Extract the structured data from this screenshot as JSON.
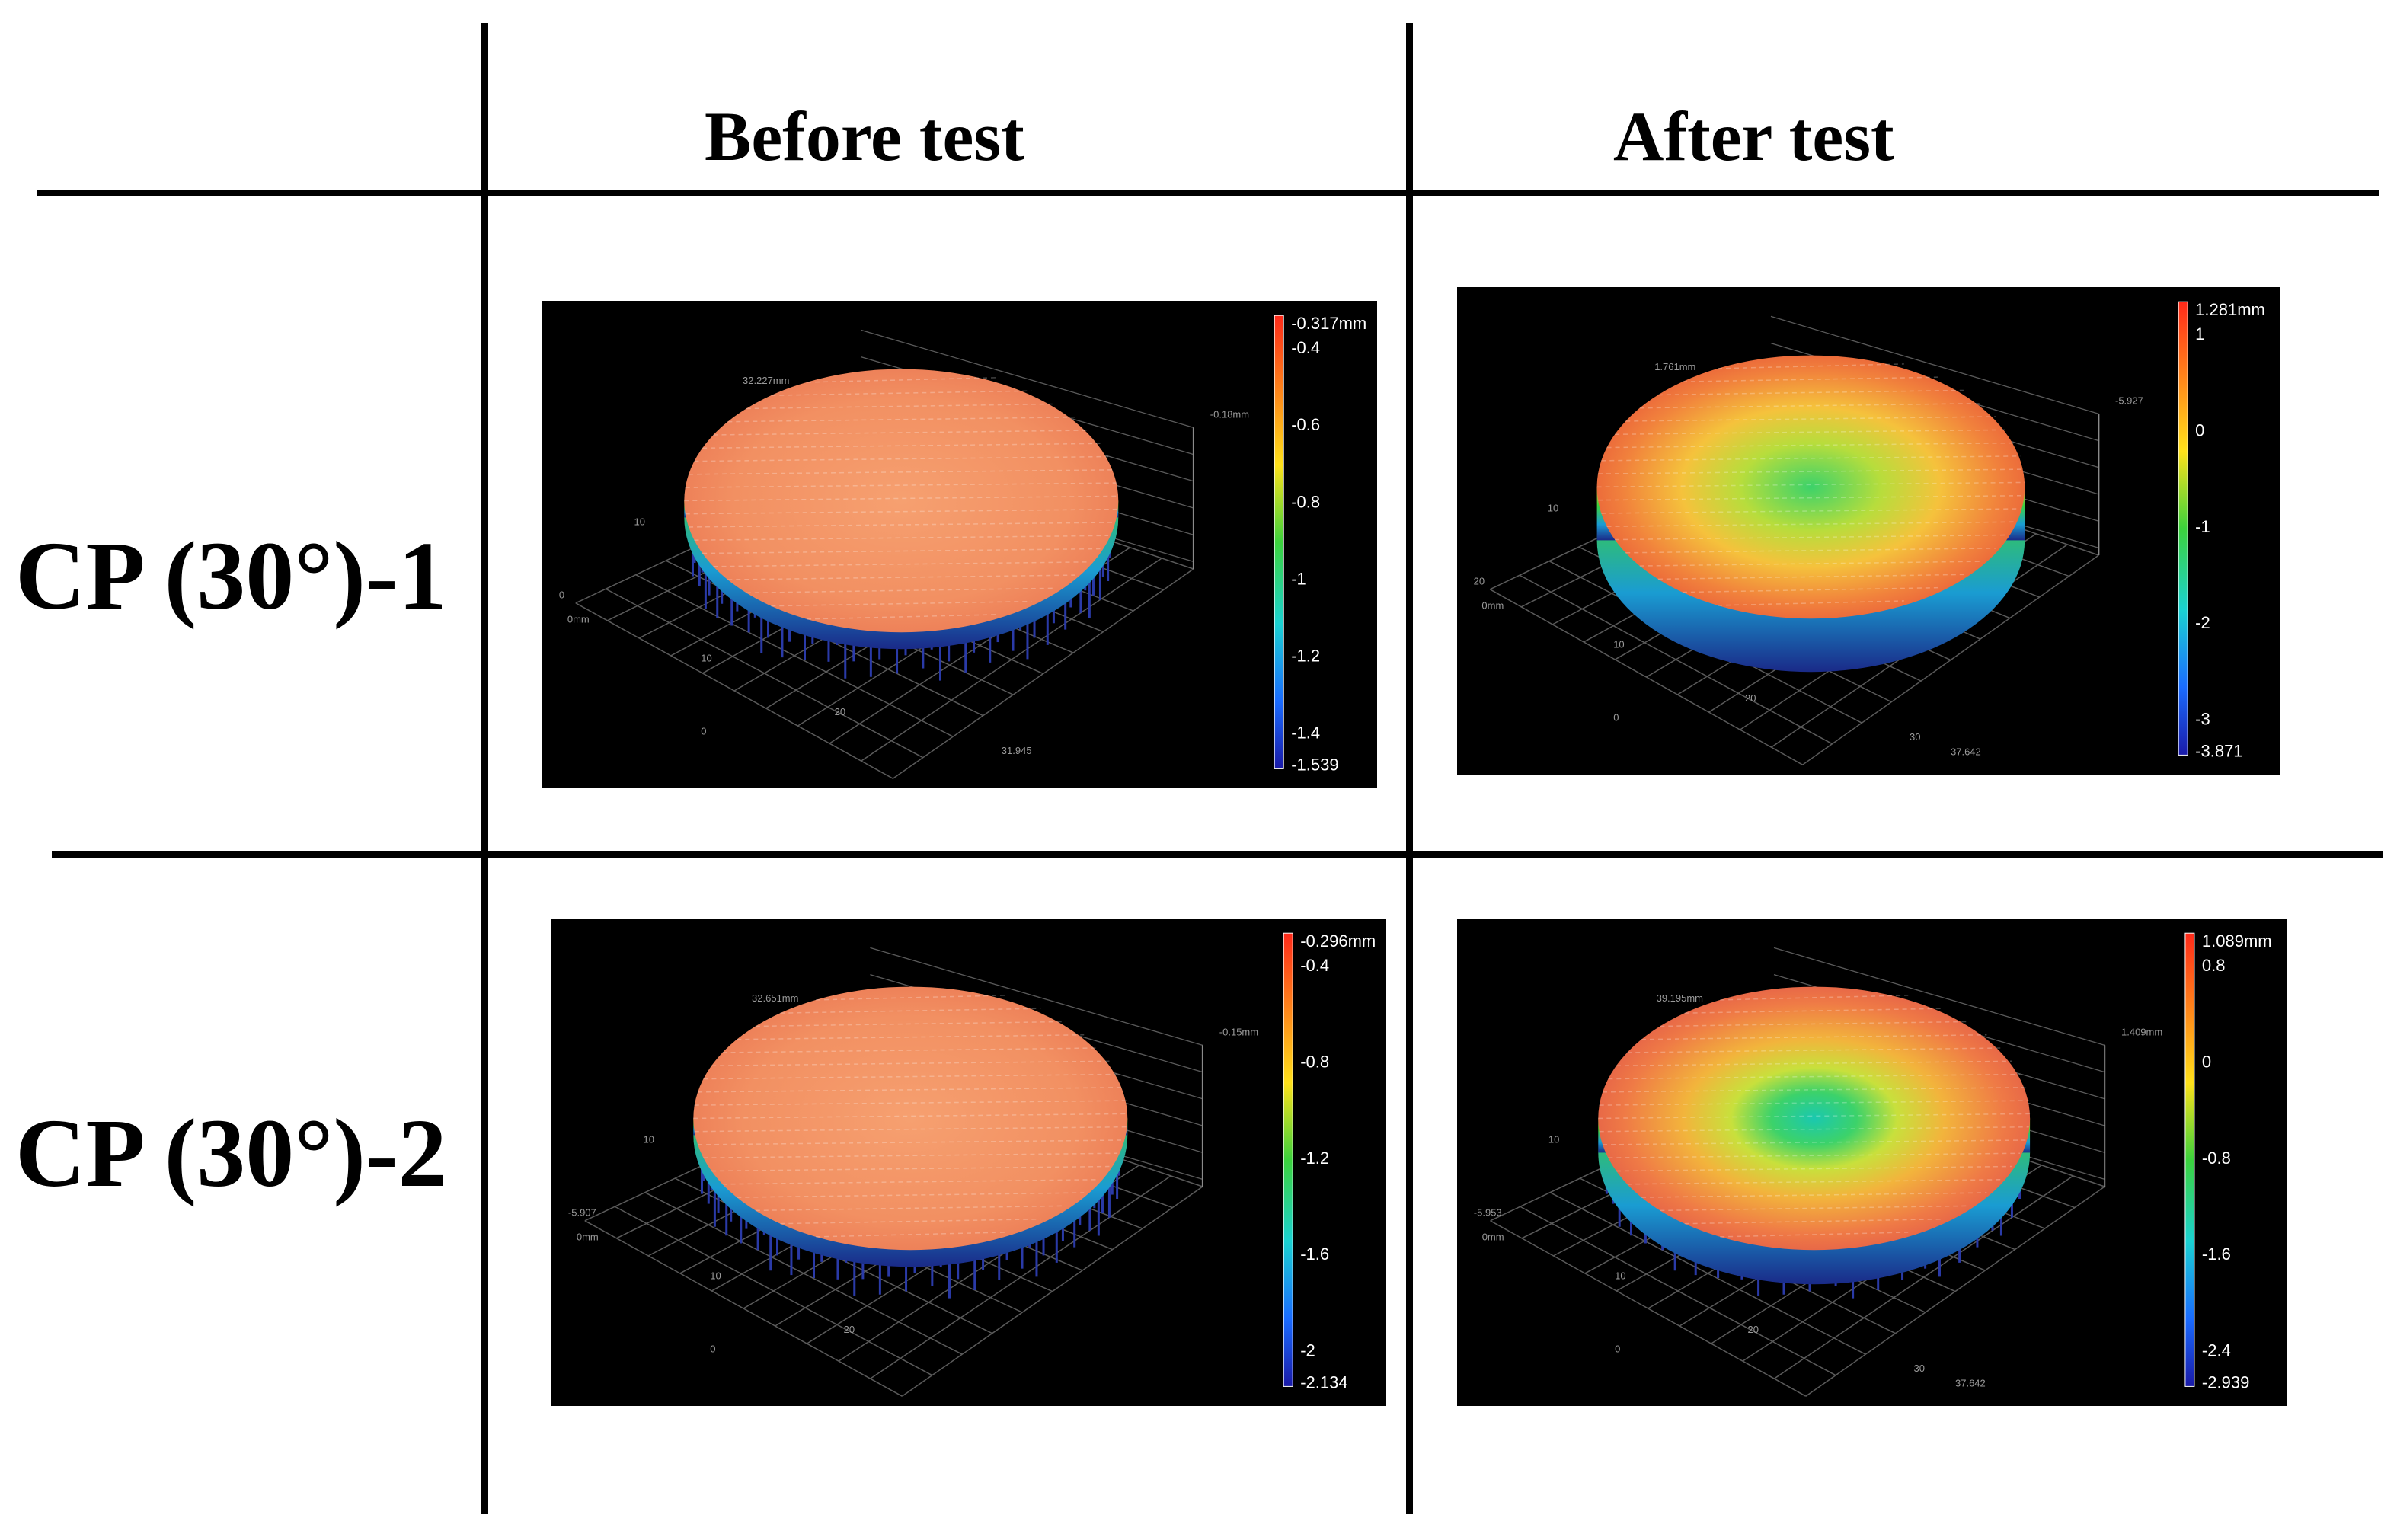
{
  "table": {
    "col_headers": [
      "Before test",
      "After test"
    ],
    "row_headers": [
      "CP (30°)-1",
      "CP (30°)-2"
    ]
  },
  "panels": [
    {
      "id": "cp1-before",
      "surface": "flat",
      "colorbar": {
        "top": "-0.317mm",
        "ticks": [
          "-0.4",
          "-0.6",
          "-0.8",
          "-1",
          "-1.2",
          "-1.4"
        ],
        "bottom": "-1.539"
      },
      "axis_labels": [
        "32.227mm",
        "-0.18mm",
        "0",
        "10",
        "0",
        "0mm",
        "10",
        "20",
        "31.945"
      ]
    },
    {
      "id": "cp1-after",
      "surface": "dished",
      "colorbar": {
        "top": "1.281mm",
        "ticks": [
          "1",
          "0",
          "-1",
          "-2",
          "-3"
        ],
        "bottom": "-3.871"
      },
      "axis_labels": [
        "1.761mm",
        "-5.927",
        "20",
        "10",
        "0",
        "0mm",
        "10",
        "20",
        "30",
        "37.642"
      ]
    },
    {
      "id": "cp2-before",
      "surface": "flat",
      "colorbar": {
        "top": "-0.296mm",
        "ticks": [
          "-0.4",
          "-0.8",
          "-1.2",
          "-1.6",
          "-2"
        ],
        "bottom": "-2.134"
      },
      "axis_labels": [
        "32.651mm",
        "-0.15mm",
        "-5.907",
        "10",
        "0",
        "0mm",
        "10",
        "20"
      ]
    },
    {
      "id": "cp2-after",
      "surface": "crater",
      "colorbar": {
        "top": "1.089mm",
        "ticks": [
          "0.8",
          "0",
          "-0.8",
          "-1.6",
          "-2.4"
        ],
        "bottom": "-2.939"
      },
      "axis_labels": [
        "39.195mm",
        "1.409mm",
        "-5.953",
        "10",
        "0",
        "0mm",
        "10",
        "20",
        "30",
        "37.642"
      ]
    }
  ],
  "colors": {
    "background": "#ffffff",
    "rule": "#000000",
    "panel_bg": "#000000"
  }
}
